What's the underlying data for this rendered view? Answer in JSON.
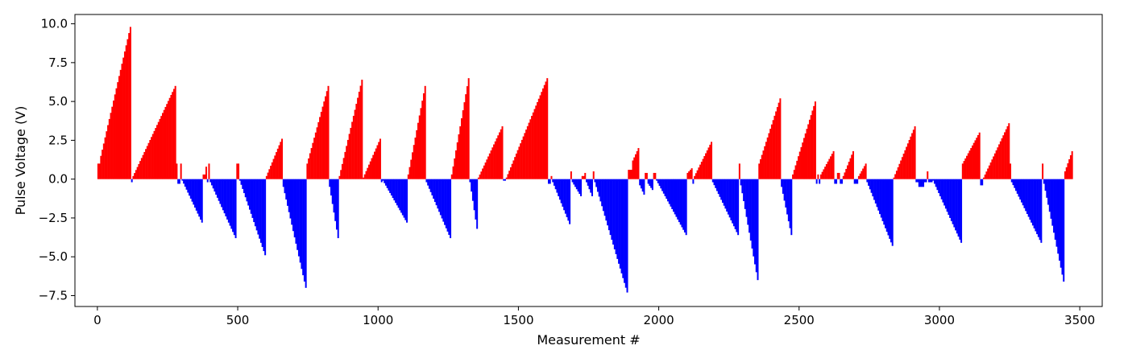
{
  "chart_data": {
    "type": "bar",
    "title": "",
    "xlabel": "Measurement #",
    "ylabel": "Pulse Voltage (V)",
    "xlim": [
      -80,
      3580
    ],
    "ylim": [
      -8.2,
      10.6
    ],
    "xticks": [
      0,
      500,
      1000,
      1500,
      2000,
      2500,
      3000,
      3500
    ],
    "yticks": [
      -7.5,
      -5.0,
      -2.5,
      0.0,
      2.5,
      5.0,
      7.5,
      10.0
    ],
    "xtick_labels": [
      "0",
      "500",
      "1000",
      "1500",
      "2000",
      "2500",
      "3000",
      "3500"
    ],
    "ytick_labels": [
      "−7.5",
      "−5.0",
      "−2.5",
      "0.0",
      "2.5",
      "5.0",
      "7.5",
      "10.0"
    ],
    "grid": false,
    "legend": "none",
    "colors": {
      "positive": "#ff0000",
      "negative": "#0000ff"
    },
    "bar_step": 5,
    "segments": [
      [
        0,
        10,
        1.0,
        1.0
      ],
      [
        10,
        120,
        1.5,
        9.8
      ],
      [
        120,
        125,
        -0.2,
        -0.2
      ],
      [
        125,
        280,
        0.2,
        6.0
      ],
      [
        280,
        285,
        1.0,
        1.0
      ],
      [
        285,
        295,
        -0.3,
        -0.3
      ],
      [
        295,
        300,
        1.0,
        1.0
      ],
      [
        300,
        375,
        -0.1,
        -2.8
      ],
      [
        375,
        385,
        0.3,
        0.3
      ],
      [
        385,
        390,
        0.8,
        0.8
      ],
      [
        390,
        395,
        -0.2,
        -0.2
      ],
      [
        395,
        400,
        1.0,
        1.0
      ],
      [
        400,
        495,
        -0.2,
        -3.8
      ],
      [
        495,
        505,
        1.0,
        1.0
      ],
      [
        505,
        600,
        -0.1,
        -4.9
      ],
      [
        600,
        655,
        0.2,
        2.4
      ],
      [
        655,
        660,
        2.6,
        2.6
      ],
      [
        660,
        745,
        -0.5,
        -7.0
      ],
      [
        745,
        825,
        1.0,
        6.0
      ],
      [
        825,
        860,
        -0.5,
        -3.8
      ],
      [
        860,
        945,
        0.2,
        6.4
      ],
      [
        945,
        1010,
        0.1,
        2.6
      ],
      [
        1010,
        1015,
        -0.2,
        -0.2
      ],
      [
        1015,
        1105,
        -0.1,
        -2.8
      ],
      [
        1105,
        1170,
        0.3,
        6.0
      ],
      [
        1170,
        1260,
        -0.2,
        -3.8
      ],
      [
        1260,
        1325,
        0.3,
        6.5
      ],
      [
        1325,
        1355,
        -0.2,
        -3.2
      ],
      [
        1355,
        1445,
        0.1,
        3.4
      ],
      [
        1445,
        1455,
        -0.1,
        -0.1
      ],
      [
        1455,
        1605,
        0.1,
        6.5
      ],
      [
        1605,
        1615,
        -0.3,
        -0.3
      ],
      [
        1615,
        1620,
        0.2,
        0.2
      ],
      [
        1620,
        1685,
        -0.2,
        -2.9
      ],
      [
        1685,
        1690,
        0.5,
        0.5
      ],
      [
        1690,
        1725,
        -0.2,
        -1.1
      ],
      [
        1725,
        1735,
        0.2,
        0.2
      ],
      [
        1735,
        1740,
        0.4,
        0.4
      ],
      [
        1740,
        1765,
        -0.2,
        -1.1
      ],
      [
        1765,
        1770,
        0.5,
        0.5
      ],
      [
        1770,
        1890,
        -0.2,
        -7.3
      ],
      [
        1890,
        1905,
        0.6,
        0.6
      ],
      [
        1905,
        1930,
        1.2,
        2.0
      ],
      [
        1930,
        1950,
        -0.4,
        -1.0
      ],
      [
        1950,
        1960,
        0.4,
        0.4
      ],
      [
        1960,
        1980,
        -0.3,
        -0.7
      ],
      [
        1980,
        1990,
        0.4,
        0.4
      ],
      [
        1990,
        2100,
        -0.1,
        -3.6
      ],
      [
        2100,
        2120,
        0.4,
        0.7
      ],
      [
        2120,
        2125,
        -0.3,
        -0.3
      ],
      [
        2125,
        2190,
        0.2,
        2.4
      ],
      [
        2190,
        2285,
        -0.2,
        -3.6
      ],
      [
        2285,
        2290,
        1.0,
        1.0
      ],
      [
        2290,
        2355,
        -0.4,
        -6.5
      ],
      [
        2355,
        2435,
        1.0,
        5.2
      ],
      [
        2435,
        2475,
        -0.5,
        -3.6
      ],
      [
        2475,
        2560,
        0.3,
        5.0
      ],
      [
        2560,
        2565,
        -0.3,
        -0.3
      ],
      [
        2565,
        2570,
        0.3,
        0.3
      ],
      [
        2570,
        2575,
        -0.3,
        -0.3
      ],
      [
        2575,
        2625,
        0.3,
        1.8
      ],
      [
        2625,
        2635,
        -0.3,
        -0.3
      ],
      [
        2635,
        2645,
        0.4,
        0.4
      ],
      [
        2645,
        2655,
        -0.3,
        -0.3
      ],
      [
        2655,
        2695,
        0.2,
        1.8
      ],
      [
        2695,
        2710,
        -0.3,
        -0.3
      ],
      [
        2710,
        2740,
        0.2,
        1.0
      ],
      [
        2740,
        2835,
        -0.2,
        -4.3
      ],
      [
        2835,
        2915,
        0.1,
        3.4
      ],
      [
        2915,
        2925,
        -0.2,
        -0.2
      ],
      [
        2925,
        2945,
        -0.5,
        -0.5
      ],
      [
        2945,
        2955,
        -0.2,
        -0.2
      ],
      [
        2955,
        2960,
        0.5,
        0.5
      ],
      [
        2960,
        2975,
        -0.2,
        -0.2
      ],
      [
        2975,
        3080,
        -0.1,
        -4.1
      ],
      [
        3080,
        3145,
        1.0,
        3.0
      ],
      [
        3145,
        3155,
        -0.4,
        -0.4
      ],
      [
        3155,
        3250,
        0.1,
        3.6
      ],
      [
        3250,
        3255,
        1.0,
        1.0
      ],
      [
        3255,
        3365,
        -0.2,
        -4.1
      ],
      [
        3365,
        3370,
        1.0,
        1.0
      ],
      [
        3370,
        3445,
        -0.3,
        -6.6
      ],
      [
        3445,
        3475,
        0.5,
        1.8
      ]
    ]
  }
}
